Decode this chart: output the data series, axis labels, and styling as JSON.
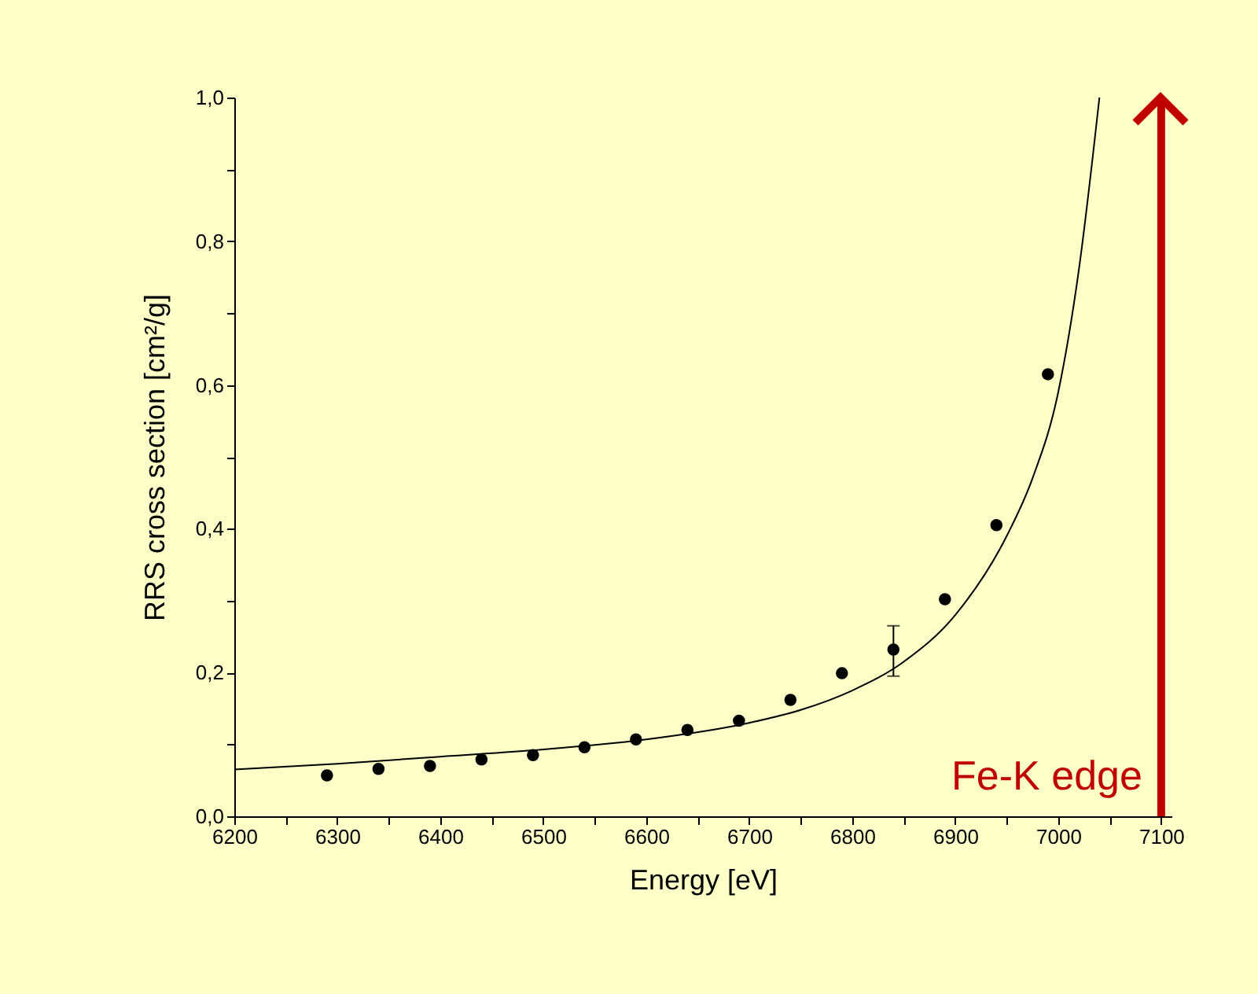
{
  "chart_data": {
    "type": "scatter",
    "xlabel": "Energy [eV]",
    "ylabel": "RRS cross section [cm²/g]",
    "xlim": [
      6200,
      7110
    ],
    "ylim": [
      0,
      1.0
    ],
    "xticks": [
      6200,
      {
        "value": 6250,
        "label": null
      },
      6300,
      {
        "value": 6350,
        "label": null
      },
      6400,
      {
        "value": 6450,
        "label": null
      },
      6500,
      {
        "value": 6550,
        "label": null
      },
      6600,
      {
        "value": 6650,
        "label": null
      },
      6700,
      {
        "value": 6750,
        "label": null
      },
      6800,
      {
        "value": 6850,
        "label": null
      },
      6900,
      {
        "value": 6950,
        "label": null
      },
      7000,
      {
        "value": 7050,
        "label": null
      },
      7100
    ],
    "yticks": [
      {
        "value": 0,
        "label": "0,0"
      },
      {
        "value": 0.1,
        "label": null
      },
      {
        "value": 0.2,
        "label": "0,2"
      },
      {
        "value": 0.3,
        "label": null
      },
      {
        "value": 0.4,
        "label": "0,4"
      },
      {
        "value": 0.5,
        "label": null
      },
      {
        "value": 0.6,
        "label": "0,6"
      },
      {
        "value": 0.7,
        "label": null
      },
      {
        "value": 0.8,
        "label": "0,8"
      },
      {
        "value": 0.9,
        "label": null
      },
      {
        "value": 1.0,
        "label": "1,0"
      }
    ],
    "grid": false,
    "series": [
      {
        "type": "scatter",
        "color": "#000000",
        "marker": "circle",
        "x": [
          6290,
          6340,
          6390,
          6440,
          6490,
          6540,
          6590,
          6640,
          6690,
          6740,
          6790,
          6840,
          6890,
          6940,
          6990
        ],
        "values": [
          0.057,
          0.066,
          0.07,
          0.079,
          0.085,
          0.096,
          0.107,
          0.12,
          0.133,
          0.162,
          0.199,
          0.232,
          0.302,
          0.405,
          0.615
        ],
        "errors": [
          null,
          null,
          null,
          null,
          null,
          null,
          null,
          null,
          null,
          null,
          null,
          [
            0.195,
            0.265
          ],
          null,
          null,
          null
        ]
      },
      {
        "type": "line",
        "color": "#000000",
        "line_style": "solid",
        "x": [
          6200,
          6300,
          6400,
          6500,
          6600,
          6700,
          6750,
          6800,
          6850,
          6900,
          6950,
          6975,
          7000,
          7020,
          7040
        ],
        "values": [
          0.065,
          0.073,
          0.083,
          0.093,
          0.107,
          0.13,
          0.148,
          0.175,
          0.215,
          0.28,
          0.39,
          0.47,
          0.59,
          0.76,
          1.0
        ]
      }
    ],
    "ref_lines": [
      {
        "axis": "x",
        "value": 7100,
        "label": "Fe-K edge",
        "color": "#c00000"
      }
    ]
  }
}
